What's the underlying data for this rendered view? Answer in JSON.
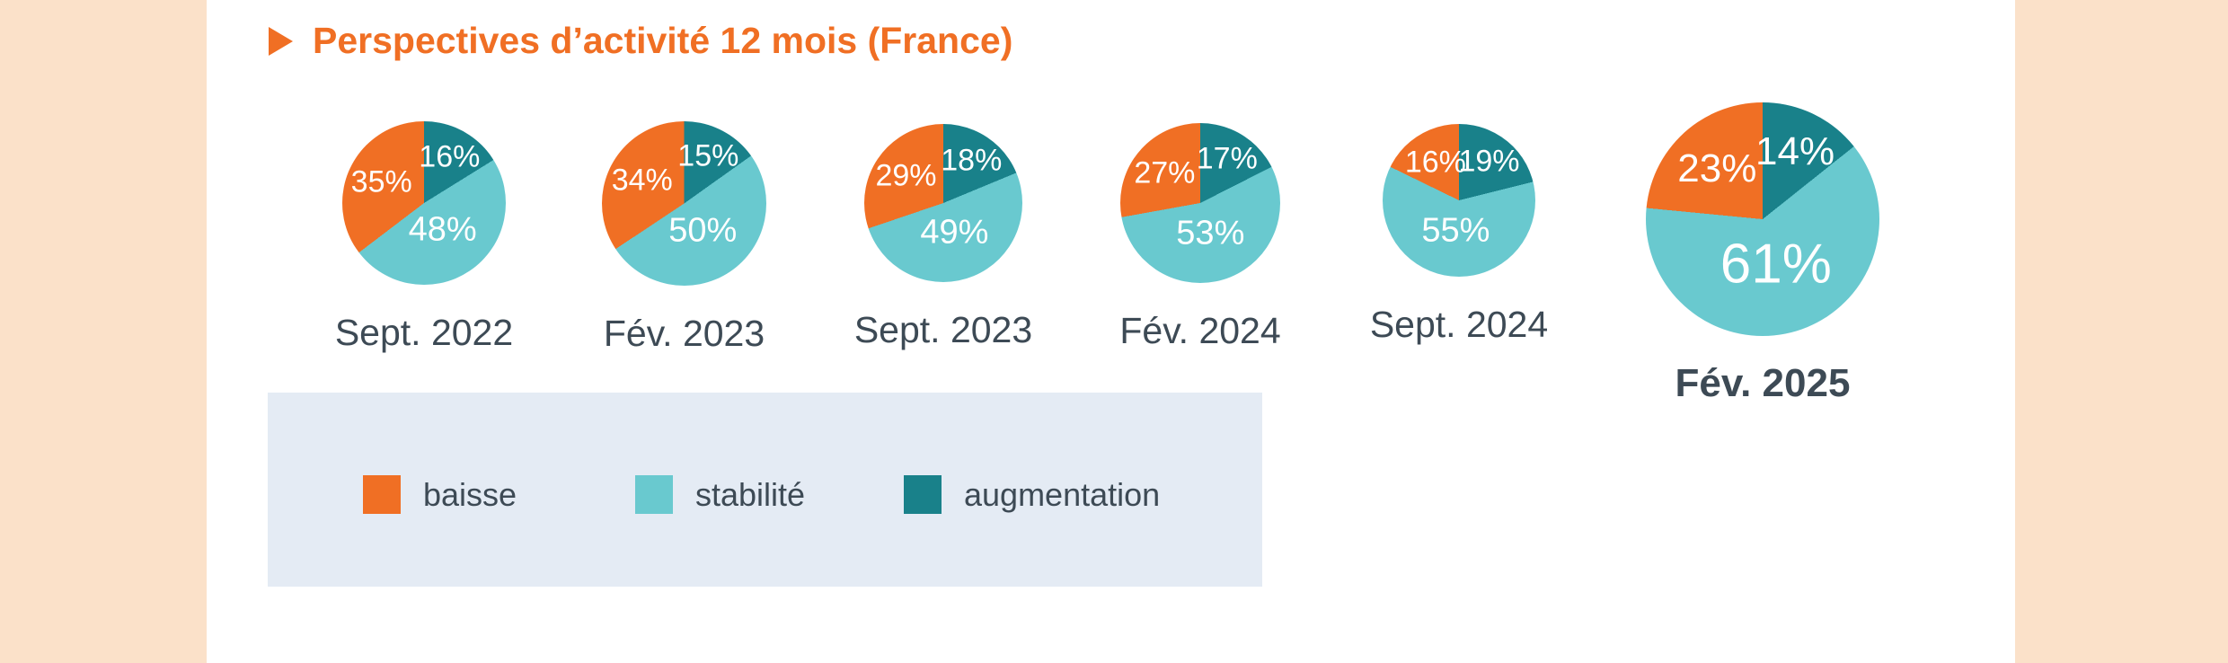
{
  "page": {
    "background_color": "#ffffff",
    "side_band_color": "#fbe1c9",
    "text_color": "#3d4a55"
  },
  "title": {
    "text": "Perspectives d’activité 12 mois (France)",
    "color": "#f06f24",
    "arrow_icon": "right-triangle"
  },
  "legend": {
    "background": "#e4ebf4",
    "items": [
      {
        "label": "baisse",
        "color": "#f06f24"
      },
      {
        "label": "stabilité",
        "color": "#69c9cf"
      },
      {
        "label": "augmentation",
        "color": "#19818a"
      }
    ]
  },
  "chart_data": {
    "type": "pie",
    "title": "Perspectives d’activité 12 mois (France)",
    "values_unit": "%",
    "categories": [
      "Sept. 2022",
      "Fév. 2023",
      "Sept. 2023",
      "Fév. 2024",
      "Sept. 2024",
      "Fév. 2025"
    ],
    "series": [
      {
        "name": "baisse",
        "values": [
          35,
          34,
          29,
          27,
          16,
          23
        ]
      },
      {
        "name": "stabilité",
        "values": [
          48,
          50,
          49,
          53,
          55,
          61
        ]
      },
      {
        "name": "augmentation",
        "values": [
          16,
          15,
          18,
          17,
          19,
          14
        ]
      }
    ],
    "colors": {
      "baisse": "#f06f24",
      "stabilité": "#69c9cf",
      "augmentation": "#19818a"
    },
    "slice_order_clockwise_from_top": [
      "augmentation",
      "stabilité",
      "baisse"
    ],
    "slice_label_color": "#ffffff",
    "emphasized_category": "Fév. 2025",
    "legend_position": "bottom-left"
  }
}
